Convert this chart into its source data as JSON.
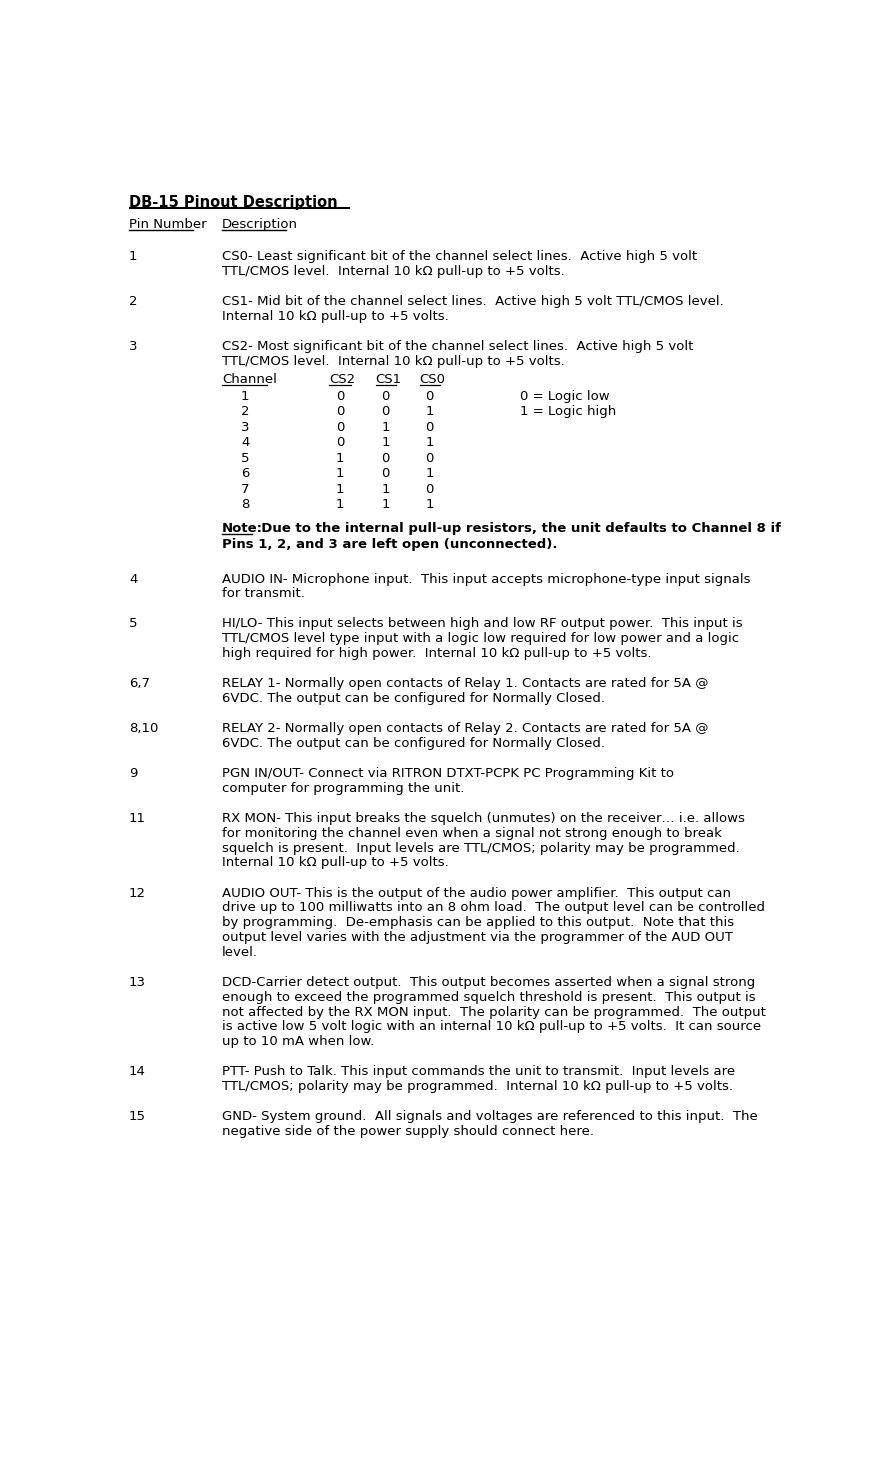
{
  "title": "DB-15 Pinout Description",
  "col1_header": "Pin Number",
  "col2_header": "Description",
  "bg_color": "#ffffff",
  "text_color": "#000000",
  "font_size": 9.5,
  "entries": [
    {
      "pin": "1",
      "desc_lines": [
        "CS0- Least significant bit of the channel select lines.  Active high 5 volt",
        "TTL/CMOS level.  Internal 10 kΩ pull-up to +5 volts."
      ]
    },
    {
      "pin": "2",
      "desc_lines": [
        "CS1- Mid bit of the channel select lines.  Active high 5 volt TTL/CMOS level.",
        "Internal 10 kΩ pull-up to +5 volts."
      ]
    },
    {
      "pin": "3",
      "desc_lines": [
        "CS2- Most significant bit of the channel select lines.  Active high 5 volt",
        "TTL/CMOS level.  Internal 10 kΩ pull-up to +5 volts."
      ],
      "has_table": true,
      "table_header": [
        "Channel",
        "CS2",
        "CS1",
        "CS0"
      ],
      "table_rows": [
        [
          "1",
          "0",
          "0",
          "0"
        ],
        [
          "2",
          "0",
          "0",
          "1"
        ],
        [
          "3",
          "0",
          "1",
          "0"
        ],
        [
          "4",
          "0",
          "1",
          "1"
        ],
        [
          "5",
          "1",
          "0",
          "0"
        ],
        [
          "6",
          "1",
          "0",
          "1"
        ],
        [
          "7",
          "1",
          "1",
          "0"
        ],
        [
          "8",
          "1",
          "1",
          "1"
        ]
      ],
      "legend": [
        "0 = Logic low",
        "1 = Logic high"
      ],
      "note_lines": [
        "Note:  Due to the internal pull-up resistors, the unit defaults to Channel 8 if",
        "Pins 1, 2, and 3 are left open (unconnected)."
      ]
    },
    {
      "pin": "4",
      "desc_lines": [
        "AUDIO IN- Microphone input.  This input accepts microphone-type input signals",
        "for transmit."
      ]
    },
    {
      "pin": "5",
      "desc_lines": [
        "HI/LO- This input selects between high and low RF output power.  This input is",
        "TTL/CMOS level type input with a logic low required for low power and a logic",
        "high required for high power.  Internal 10 kΩ pull-up to +5 volts."
      ]
    },
    {
      "pin": "6,7",
      "desc_lines": [
        "RELAY 1- Normally open contacts of Relay 1. Contacts are rated for 5A @",
        "6VDC. The output can be configured for Normally Closed."
      ]
    },
    {
      "pin": "8,10",
      "desc_lines": [
        "RELAY 2- Normally open contacts of Relay 2. Contacts are rated for 5A @",
        "6VDC. The output can be configured for Normally Closed."
      ]
    },
    {
      "pin": "9",
      "desc_lines": [
        "PGN IN/OUT- Connect via RITRON DTXT-PCPK PC Programming Kit to",
        "computer for programming the unit."
      ]
    },
    {
      "pin": "11",
      "desc_lines": [
        "RX MON- This input breaks the squelch (unmutes) on the receiver… i.e. allows",
        "for monitoring the channel even when a signal not strong enough to break",
        "squelch is present.  Input levels are TTL/CMOS; polarity may be programmed.",
        "Internal 10 kΩ pull-up to +5 volts."
      ]
    },
    {
      "pin": "12",
      "desc_lines": [
        "AUDIO OUT- This is the output of the audio power amplifier.  This output can",
        "drive up to 100 milliwatts into an 8 ohm load.  The output level can be controlled",
        "by programming.  De-emphasis can be applied to this output.  Note that this",
        "output level varies with the adjustment via the programmer of the AUD OUT",
        "level."
      ]
    },
    {
      "pin": "13",
      "desc_lines": [
        "DCD-Carrier detect output.  This output becomes asserted when a signal strong",
        "enough to exceed the programmed squelch threshold is present.  This output is",
        "not affected by the RX MON input.  The polarity can be programmed.  The output",
        "is active low 5 volt logic with an internal 10 kΩ pull-up to +5 volts.  It can source",
        "up to 10 mA when low."
      ]
    },
    {
      "pin": "14",
      "desc_lines": [
        "PTT- Push to Talk. This input commands the unit to transmit.  Input levels are",
        "TTL/CMOS; polarity may be programmed.  Internal 10 kΩ pull-up to +5 volts."
      ]
    },
    {
      "pin": "15",
      "desc_lines": [
        "GND- System ground.  All signals and voltages are referenced to this input.  The",
        "negative side of the power supply should connect here."
      ]
    }
  ]
}
